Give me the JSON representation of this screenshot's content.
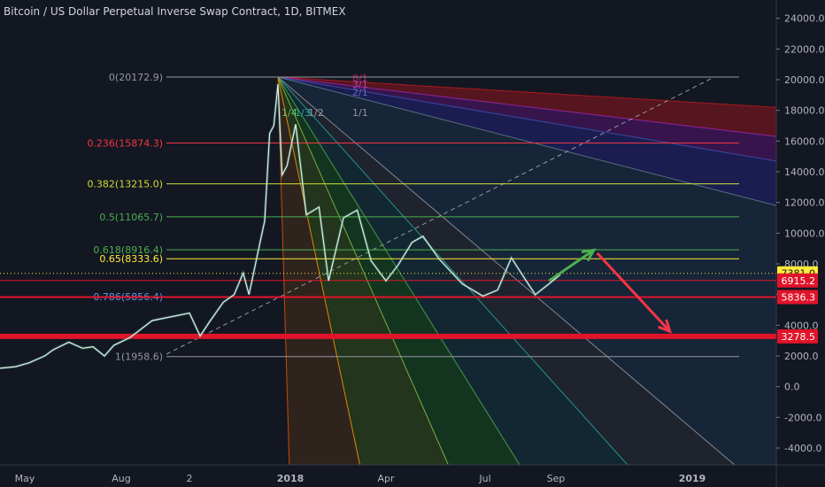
{
  "header": {
    "title": "Bitcoin / US Dollar Perpetual Inverse Swap Contract, 1D, BITMEX"
  },
  "chart_data": {
    "type": "line",
    "title": "Bitcoin / US Dollar Perpetual Inverse Swap Contract, 1D, BITMEX",
    "x_ticks": [
      "May",
      "Aug",
      "2",
      "2018",
      "Apr",
      "Jul",
      "Sep",
      "2019"
    ],
    "y_ticks": [
      "24000.0",
      "22000.0",
      "20000.0",
      "18000.0",
      "16000.0",
      "14000.0",
      "12000.0",
      "10000.0",
      "8000.0",
      "6000.0",
      "4000.0",
      "2000.0",
      "0.0",
      "-2000.0",
      "-4000.0"
    ],
    "ylim": [
      -5000,
      25000
    ],
    "fib_levels": [
      {
        "label": "0(20172.9)",
        "value": 20172.9,
        "color": "#9598a1"
      },
      {
        "label": "0.236(15874.3)",
        "value": 15874.3,
        "color": "#f23645"
      },
      {
        "label": "0.382(13215.0)",
        "value": 13215.0,
        "color": "#cddc39"
      },
      {
        "label": "0.5(11065.7)",
        "value": 11065.7,
        "color": "#4caf50"
      },
      {
        "label": "0.618(8916.4)",
        "value": 8916.4,
        "color": "#4caf50"
      },
      {
        "label": "0.65(8333.6)",
        "value": 8333.6,
        "color": "#ffeb3b"
      },
      {
        "label": "0.786(5856.4)",
        "value": 5856.4,
        "color": "#5d9cec"
      },
      {
        "label": "1(1958.6)",
        "value": 1958.6,
        "color": "#9598a1"
      }
    ],
    "fan_labels": [
      "8/1",
      "3/1",
      "2/1",
      "1/1",
      "1/2",
      "1/3",
      "1/4"
    ],
    "price_labels": [
      {
        "label": "7381.0",
        "value": 7381.0,
        "color": "#ffeb3b",
        "text_color": "#131722"
      },
      {
        "label": "6915.2",
        "value": 6915.2,
        "color": "#e0142a",
        "text_color": "#ffffff"
      },
      {
        "label": "5836.3",
        "value": 5836.3,
        "color": "#e0142a",
        "text_color": "#ffffff"
      },
      {
        "label": "3278.5",
        "value": 3278.5,
        "color": "#e0142a",
        "text_color": "#ffffff"
      }
    ],
    "price_series": [
      [
        "2017-04-01",
        1200
      ],
      [
        "2017-04-20",
        1300
      ],
      [
        "2017-05-05",
        1550
      ],
      [
        "2017-05-20",
        2000
      ],
      [
        "2017-05-28",
        2400
      ],
      [
        "2017-06-12",
        2900
      ],
      [
        "2017-06-25",
        2500
      ],
      [
        "2017-07-05",
        2600
      ],
      [
        "2017-07-16",
        2000
      ],
      [
        "2017-07-25",
        2700
      ],
      [
        "2017-08-05",
        3200
      ],
      [
        "2017-08-15",
        4300
      ],
      [
        "2017-09-01",
        4800
      ],
      [
        "2017-09-14",
        3300
      ],
      [
        "2017-09-25",
        4200
      ],
      [
        "2017-10-12",
        5500
      ],
      [
        "2017-10-25",
        6000
      ],
      [
        "2017-11-05",
        7400
      ],
      [
        "2017-11-12",
        6000
      ],
      [
        "2017-11-25",
        9300
      ],
      [
        "2017-12-01",
        10800
      ],
      [
        "2017-12-07",
        16500
      ],
      [
        "2017-12-12",
        17000
      ],
      [
        "2017-12-17",
        19700
      ],
      [
        "2017-12-22",
        13800
      ],
      [
        "2017-12-28",
        14400
      ],
      [
        "2018-01-06",
        17100
      ],
      [
        "2018-01-16",
        11200
      ],
      [
        "2018-01-28",
        11700
      ],
      [
        "2018-02-06",
        6900
      ],
      [
        "2018-02-20",
        11000
      ],
      [
        "2018-03-05",
        11500
      ],
      [
        "2018-03-18",
        8200
      ],
      [
        "2018-04-01",
        6900
      ],
      [
        "2018-04-12",
        7900
      ],
      [
        "2018-04-25",
        9400
      ],
      [
        "2018-05-05",
        9800
      ],
      [
        "2018-05-20",
        8300
      ],
      [
        "2018-06-10",
        6700
      ],
      [
        "2018-06-29",
        5900
      ],
      [
        "2018-07-12",
        6300
      ],
      [
        "2018-07-24",
        8400
      ],
      [
        "2018-08-05",
        7000
      ],
      [
        "2018-08-14",
        6000
      ],
      [
        "2018-08-26",
        6700
      ],
      [
        "2018-09-05",
        7300
      ]
    ],
    "projection": [
      {
        "from": [
          "2018-08-26",
          6900
        ],
        "to": [
          "2018-10-05",
          8900
        ],
        "color": "#4caf50"
      },
      {
        "from": [
          "2018-10-08",
          8700
        ],
        "to": [
          "2018-12-12",
          3600
        ],
        "color": "#f23645"
      }
    ]
  }
}
